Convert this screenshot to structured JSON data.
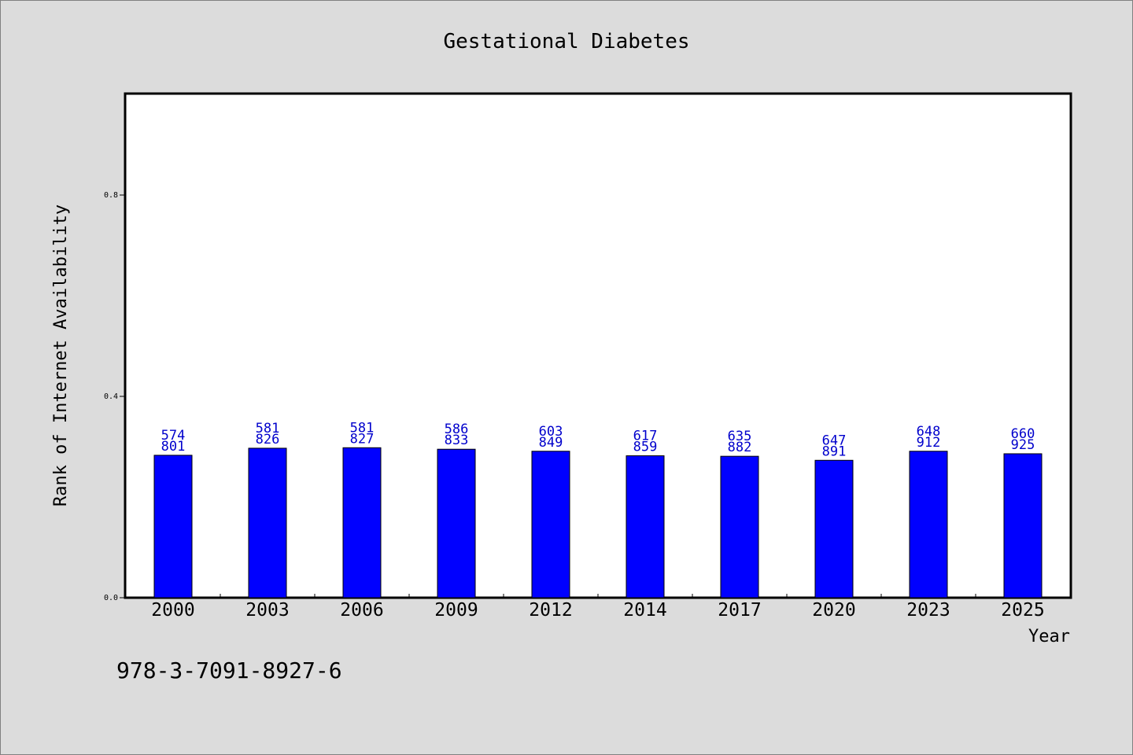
{
  "chart_data": {
    "type": "bar",
    "title": "Gestational Diabetes",
    "xlabel": "Year",
    "ylabel": "Rank of Internet Availability",
    "categories": [
      "2000",
      "2003",
      "2006",
      "2009",
      "2012",
      "2014",
      "2017",
      "2020",
      "2023",
      "2025"
    ],
    "series": [
      {
        "values": [
          0.283,
          0.297,
          0.298,
          0.295,
          0.291,
          0.282,
          0.281,
          0.273,
          0.291,
          0.286
        ],
        "numerators": [
          "574",
          "581",
          "581",
          "586",
          "603",
          "617",
          "635",
          "647",
          "648",
          "660"
        ],
        "denominators": [
          "801",
          "826",
          "827",
          "833",
          "849",
          "859",
          "882",
          "891",
          "912",
          "925"
        ]
      }
    ],
    "ylim": [
      0,
      1
    ],
    "yticks": [
      "0.0",
      "0.4",
      "0.8"
    ],
    "ytick_values": [
      0,
      0.4,
      0.8
    ],
    "grid": false,
    "bar_color": "#0000ff",
    "label_color": "#0000cc"
  },
  "footer": {
    "isbn": "978-3-7091-8927-6"
  }
}
